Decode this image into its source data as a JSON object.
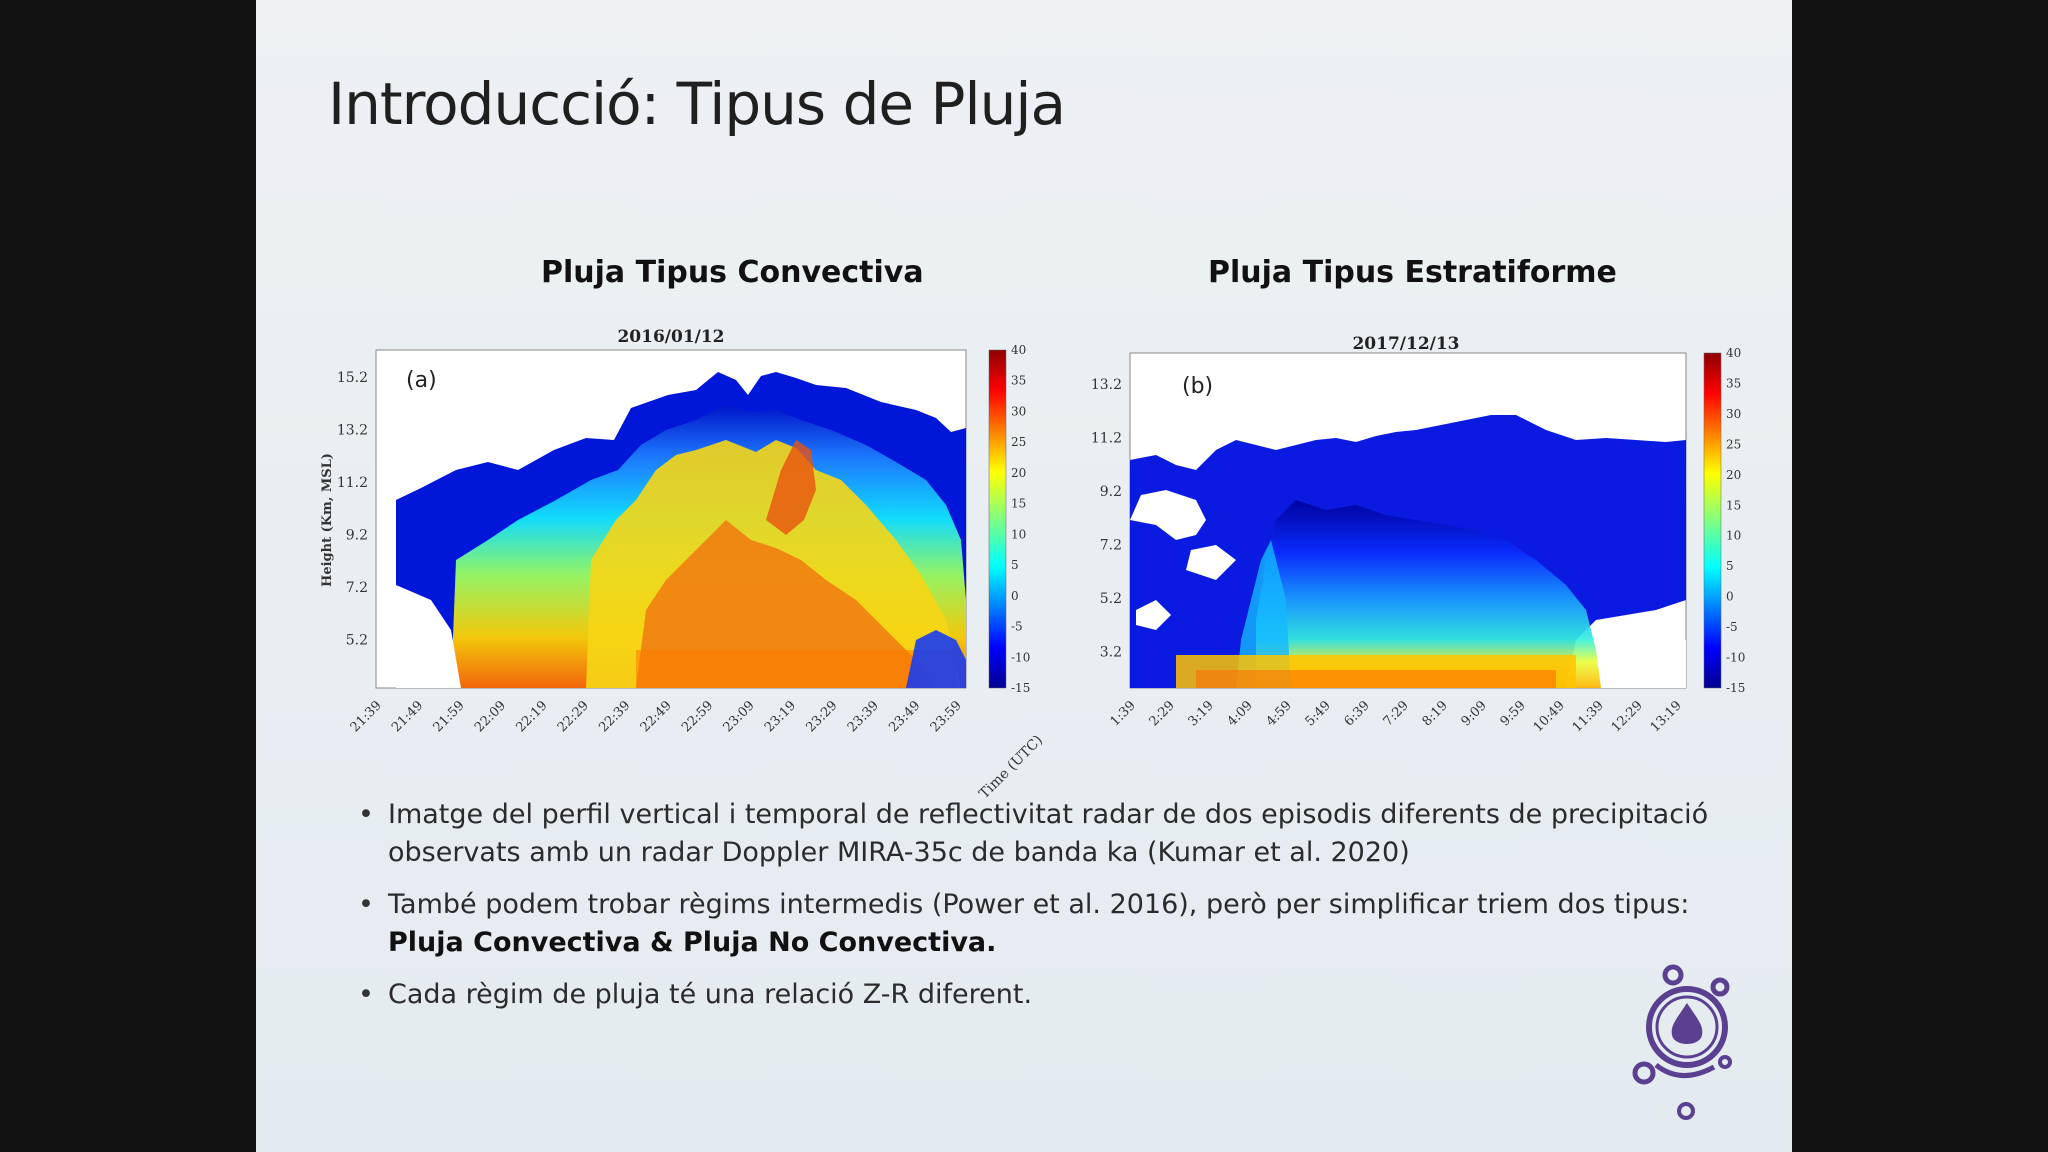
{
  "slide": {
    "title": "Introducció: Tipus de Pluja"
  },
  "panels": {
    "left_heading": "Pluja Tipus Convectiva",
    "right_heading": "Pluja Tipus Estratiforme"
  },
  "chart_data": [
    {
      "type": "heatmap",
      "title": "2016/01/12",
      "panel_label": "(a)",
      "ylabel": "Height (Km, MSL)",
      "xlabel": "Time (UTC)",
      "y_ticks": [
        "15.2",
        "13.2",
        "11.2",
        "9.2",
        "7.2",
        "5.2"
      ],
      "x_ticks": [
        "21:39",
        "21:49",
        "21:59",
        "22:09",
        "22:19",
        "22:29",
        "22:39",
        "22:49",
        "22:59",
        "23:09",
        "23:19",
        "23:29",
        "23:39",
        "23:49",
        "23:59"
      ],
      "colorbar_ticks": [
        "40",
        "35",
        "30",
        "25",
        "20",
        "15",
        "10",
        "5",
        "0",
        "-5",
        "-10",
        "-15"
      ],
      "colorbar_range": [
        -15,
        40
      ],
      "colormap": "jet"
    },
    {
      "type": "heatmap",
      "title": "2017/12/13",
      "panel_label": "(b)",
      "ylabel": "",
      "xlabel": "",
      "y_ticks": [
        "13.2",
        "11.2",
        "9.2",
        "7.2",
        "5.2",
        "3.2"
      ],
      "x_ticks": [
        "1:39",
        "2:29",
        "3:19",
        "4:09",
        "4:59",
        "5:49",
        "6:39",
        "7:29",
        "8:19",
        "9:09",
        "9:59",
        "10:49",
        "11:39",
        "12:29",
        "13:19"
      ],
      "colorbar_ticks": [
        "40",
        "35",
        "30",
        "25",
        "20",
        "15",
        "10",
        "5",
        "0",
        "-5",
        "-10",
        "-15"
      ],
      "colorbar_range": [
        -15,
        40
      ],
      "colormap": "jet"
    }
  ],
  "bullets": [
    {
      "text": "Imatge del perfil vertical i temporal de reflectivitat radar de dos episodis diferents de precipitació observats amb un radar Doppler MIRA-35c de banda ka (Kumar et al. 2020)"
    },
    {
      "text": "També podem trobar règims intermedis (Power et al. 2016), però per simplificar triem dos tipus: ",
      "bold": "Pluja Convectiva & Pluja No Convectiva."
    },
    {
      "text": "Cada règim de pluja té una relació Z-R diferent."
    }
  ],
  "colors": {
    "logo": "#5b3f91",
    "jet_low": "#00008f",
    "jet_high": "#8f0000"
  },
  "logo": {
    "icon": "raindrop-circle-logo"
  }
}
